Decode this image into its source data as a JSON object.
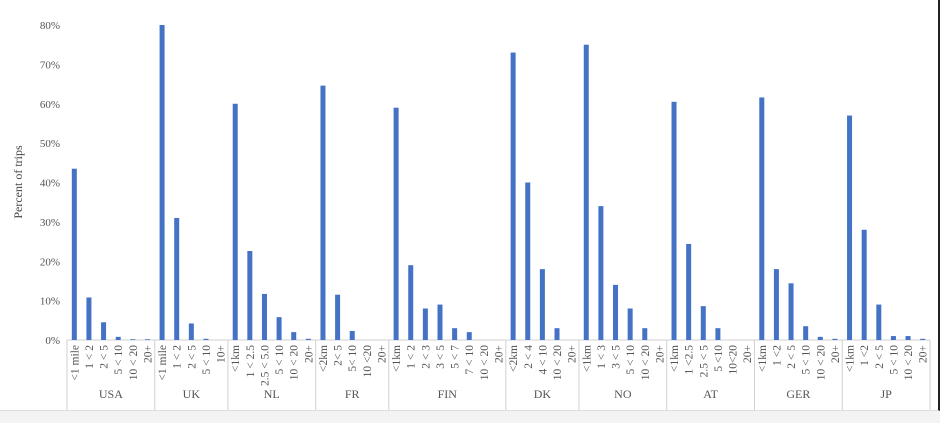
{
  "chart_data": {
    "type": "bar",
    "title": "",
    "ylabel": "Percent of trips",
    "xlabel": "",
    "ylim": [
      0,
      80
    ],
    "yticks": [
      "0%",
      "10%",
      "20%",
      "30%",
      "40%",
      "50%",
      "60%",
      "70%",
      "80%"
    ],
    "grid": false,
    "legend": "none",
    "bar_color": "#4472c4",
    "groups": [
      {
        "name": "USA",
        "categories": [
          "<1 mile",
          "1 < 2",
          "2 < 5",
          "5 < 10",
          "10 < 20",
          "20+"
        ],
        "values": [
          43.5,
          10.8,
          4.5,
          0.8,
          0.2,
          0.2
        ]
      },
      {
        "name": "UK",
        "categories": [
          "<1 mile",
          "1 < 2",
          "2 < 5",
          "5 < 10",
          "10+"
        ],
        "values": [
          80,
          31,
          4.2,
          0.3,
          0
        ]
      },
      {
        "name": "NL",
        "categories": [
          "<1km",
          "1 < 2.5",
          "2.5 < 5.0",
          "5 < 10",
          "10 < 20",
          "20+"
        ],
        "values": [
          60,
          22.6,
          11.7,
          5.8,
          2,
          0.3
        ]
      },
      {
        "name": "FR",
        "categories": [
          "<2km",
          "2< 5",
          "5< 10",
          "10 <20",
          "20+"
        ],
        "values": [
          64.6,
          11.5,
          2.3,
          0,
          0
        ]
      },
      {
        "name": "FIN",
        "categories": [
          "<1km",
          "1 < 2",
          "2 < 3",
          "3 < 5",
          "5 < 7",
          "7 < 10",
          "10 < 20",
          "20+"
        ],
        "values": [
          59,
          19,
          8,
          9,
          3,
          2,
          0,
          0
        ]
      },
      {
        "name": "DK",
        "categories": [
          "<2km",
          "2 < 4",
          "4 < 10",
          "10 < 20",
          "20+"
        ],
        "values": [
          73,
          40,
          18,
          3,
          0
        ]
      },
      {
        "name": "NO",
        "categories": [
          "<1km",
          "1 < 3",
          "3 < 5",
          "5 < 10",
          "10 < 20",
          "20+"
        ],
        "values": [
          75,
          34,
          14,
          8,
          3,
          0
        ]
      },
      {
        "name": "AT",
        "categories": [
          "<1km",
          "1 <2.5",
          "2.5 < 5",
          "5 <10",
          "10<20",
          "20+"
        ],
        "values": [
          60.5,
          24.4,
          8.6,
          3,
          0,
          0
        ]
      },
      {
        "name": "GER",
        "categories": [
          "<1km",
          "1 <2",
          "2 < 5",
          "5 < 10",
          "10 < 20",
          "20+"
        ],
        "values": [
          61.6,
          18,
          14.4,
          3.5,
          0.8,
          0.3
        ]
      },
      {
        "name": "JP",
        "categories": [
          "<1km",
          "1 <2",
          "2 < 5",
          "5 < 10",
          "10 < 20",
          "20+"
        ],
        "values": [
          57,
          28,
          9,
          1,
          1,
          0.3
        ]
      }
    ]
  }
}
